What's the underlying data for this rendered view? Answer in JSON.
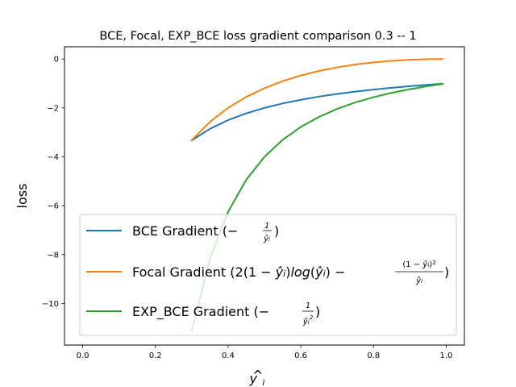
{
  "chart_data": {
    "type": "line",
    "title": "BCE, Focal, EXP_BCE loss gradient comparison 0.3 -- 1",
    "xlabel": "ŷ_i",
    "ylabel": "loss",
    "xlim": [
      -0.05,
      1.05
    ],
    "ylim": [
      -11.7,
      0.5
    ],
    "xticks": [
      0.0,
      0.2,
      0.4,
      0.6,
      0.8,
      1.0
    ],
    "xtick_labels": [
      "0.0",
      "0.2",
      "0.4",
      "0.6",
      "0.8",
      "1.0"
    ],
    "yticks": [
      0,
      -2,
      -4,
      -6,
      -8,
      -10
    ],
    "ytick_labels": [
      "0",
      "−2",
      "−4",
      "−6",
      "−8",
      "−10"
    ],
    "legend_position": "lower-center",
    "series": [
      {
        "name": "BCE Gradient (−1/ŷ_i)",
        "color": "#1f77b4",
        "x": [
          0.3,
          0.35,
          0.4,
          0.45,
          0.5,
          0.55,
          0.6,
          0.65,
          0.7,
          0.75,
          0.8,
          0.85,
          0.9,
          0.95,
          0.99
        ],
        "y": [
          -3.333,
          -2.857,
          -2.5,
          -2.222,
          -2.0,
          -1.818,
          -1.667,
          -1.538,
          -1.429,
          -1.333,
          -1.25,
          -1.176,
          -1.111,
          -1.053,
          -1.01
        ]
      },
      {
        "name": "Focal Gradient (2(1−ŷ_i)log(ŷ_i) − (1−ŷ_i)²/ŷ_i)",
        "color": "#ff7f0e",
        "x": [
          0.3,
          0.35,
          0.4,
          0.45,
          0.5,
          0.55,
          0.6,
          0.65,
          0.7,
          0.75,
          0.8,
          0.85,
          0.9,
          0.95,
          0.99
        ],
        "y": [
          -3.319,
          -2.572,
          -1.999,
          -1.55,
          -1.193,
          -0.907,
          -0.675,
          -0.49,
          -0.343,
          -0.227,
          -0.139,
          -0.075,
          -0.032,
          -0.008,
          -0.0003
        ]
      },
      {
        "name": "EXP_BCE Gradient (−1/ŷ_i²)",
        "color": "#2ca02c",
        "x": [
          0.3,
          0.35,
          0.4,
          0.45,
          0.5,
          0.55,
          0.6,
          0.65,
          0.7,
          0.75,
          0.8,
          0.85,
          0.9,
          0.95,
          0.99
        ],
        "y": [
          -11.111,
          -8.163,
          -6.25,
          -4.938,
          -4.0,
          -3.306,
          -2.778,
          -2.367,
          -2.041,
          -1.778,
          -1.563,
          -1.384,
          -1.235,
          -1.108,
          -1.02
        ]
      }
    ]
  }
}
